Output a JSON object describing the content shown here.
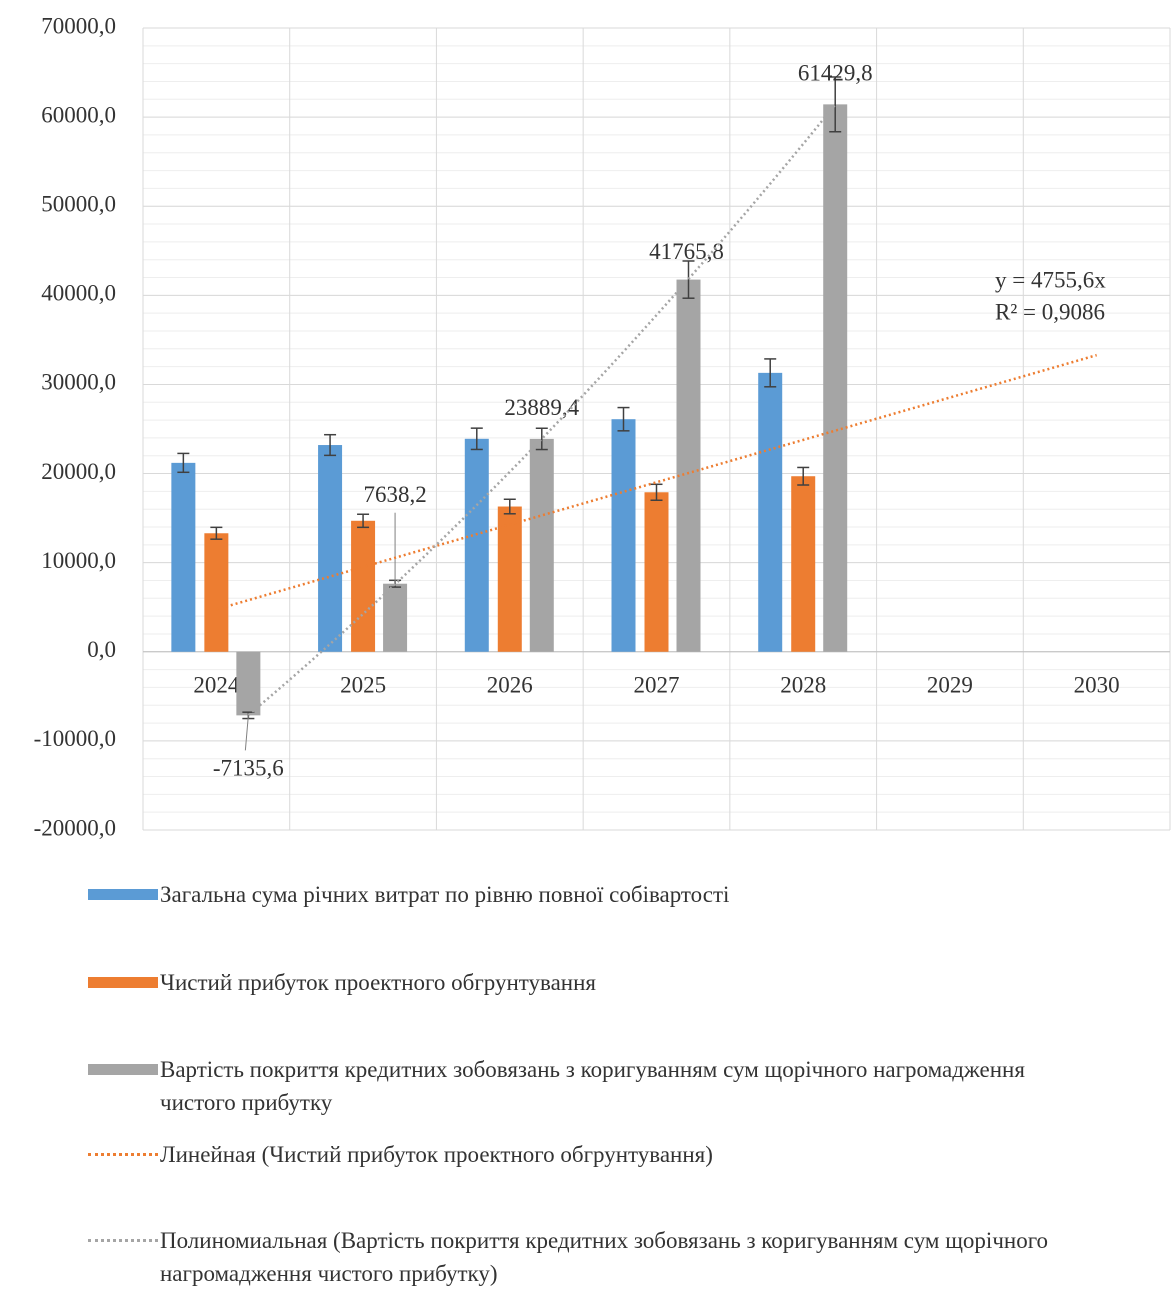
{
  "chart_data": {
    "type": "bar",
    "categories": [
      "2024",
      "2025",
      "2026",
      "2027",
      "2028",
      "2029",
      "2030"
    ],
    "series": [
      {
        "name": "Загальна сума річних витрат по рівню повної собівартості",
        "color": "#5b9bd5",
        "values": [
          21200,
          23200,
          23900,
          26100,
          31300,
          null,
          null
        ]
      },
      {
        "name": "Чистий прибуток проектного обгрунтування",
        "color": "#ed7d31",
        "values": [
          13300,
          14700,
          16300,
          17900,
          19700,
          null,
          null
        ]
      },
      {
        "name": "Вартість покриття кредитних зобовязань з коригуванням  сум щорічного нагромадження чистого прибутку",
        "color": "#a5a5a5",
        "values": [
          -7135.6,
          7638.2,
          23889.4,
          41765.8,
          61429.8,
          null,
          null
        ],
        "value_labels": [
          "-7135,6",
          "7638,2",
          "23889,4",
          "41765,8",
          "61429,8",
          null,
          null
        ]
      }
    ],
    "error_bars_percent": 5,
    "trendlines": [
      {
        "name": "Линейная (Чистий прибуток проектного обгрунтування)",
        "type": "linear",
        "series": 1,
        "color": "#ed7d31",
        "slope": 4755.6,
        "equation_label": "y = 4755,6x",
        "r2_label": "R² = 0,9086"
      },
      {
        "name": "Полиномиальная (Вартість покриття кредитних зобовязань з коригуванням сум щорічного нагромадження чистого прибутку)",
        "type": "polynomial",
        "order": 2,
        "series": 2,
        "color": "#a5a5a5"
      }
    ],
    "ylim": [
      -20000,
      70000
    ],
    "yticks": [
      {
        "value": -20000,
        "label": "-20000,0"
      },
      {
        "value": -10000,
        "label": "-10000,0"
      },
      {
        "value": 0,
        "label": "0,0"
      },
      {
        "value": 10000,
        "label": "10000,0"
      },
      {
        "value": 20000,
        "label": "20000,0"
      },
      {
        "value": 30000,
        "label": "30000,0"
      },
      {
        "value": 40000,
        "label": "40000,0"
      },
      {
        "value": 50000,
        "label": "50000,0"
      },
      {
        "value": 60000,
        "label": "60000,0"
      },
      {
        "value": 70000,
        "label": "70000,0"
      }
    ],
    "grid": true
  }
}
